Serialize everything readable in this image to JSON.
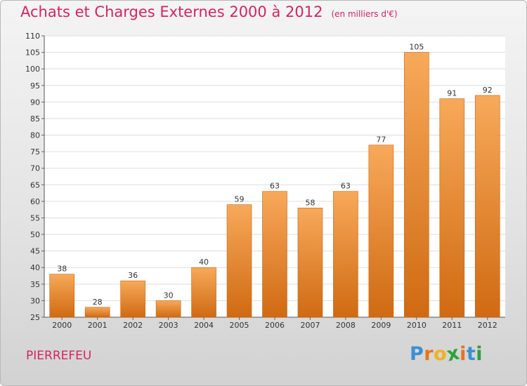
{
  "chart_data": {
    "type": "bar",
    "title": "Achats et Charges Externes 2000 à 2012",
    "subtitle": "(en milliers d'€)",
    "categories": [
      "2000",
      "2001",
      "2002",
      "2003",
      "2004",
      "2005",
      "2006",
      "2007",
      "2008",
      "2009",
      "2010",
      "2011",
      "2012"
    ],
    "values": [
      38,
      28,
      36,
      30,
      40,
      59,
      63,
      58,
      63,
      77,
      105,
      91,
      92
    ],
    "ylim": [
      25,
      110
    ],
    "yticks": [
      25,
      30,
      35,
      40,
      45,
      50,
      55,
      60,
      65,
      70,
      75,
      80,
      85,
      90,
      95,
      100,
      105,
      110
    ],
    "grid": true,
    "xlabel": "",
    "ylabel": "",
    "colors": {
      "bar_top": "#f7a95a",
      "bar_bottom": "#d06a12",
      "title": "#d9235f"
    }
  },
  "place": "PIERREFEU",
  "logo": {
    "letters": [
      "P",
      "r",
      "o",
      "x",
      "i",
      "t",
      "i"
    ],
    "colors": [
      "#3b8fd6",
      "#e8741a",
      "#f2b21a",
      "#2aa23b",
      "#e8741a",
      "#3b8fd6",
      "#2aa23b"
    ]
  }
}
